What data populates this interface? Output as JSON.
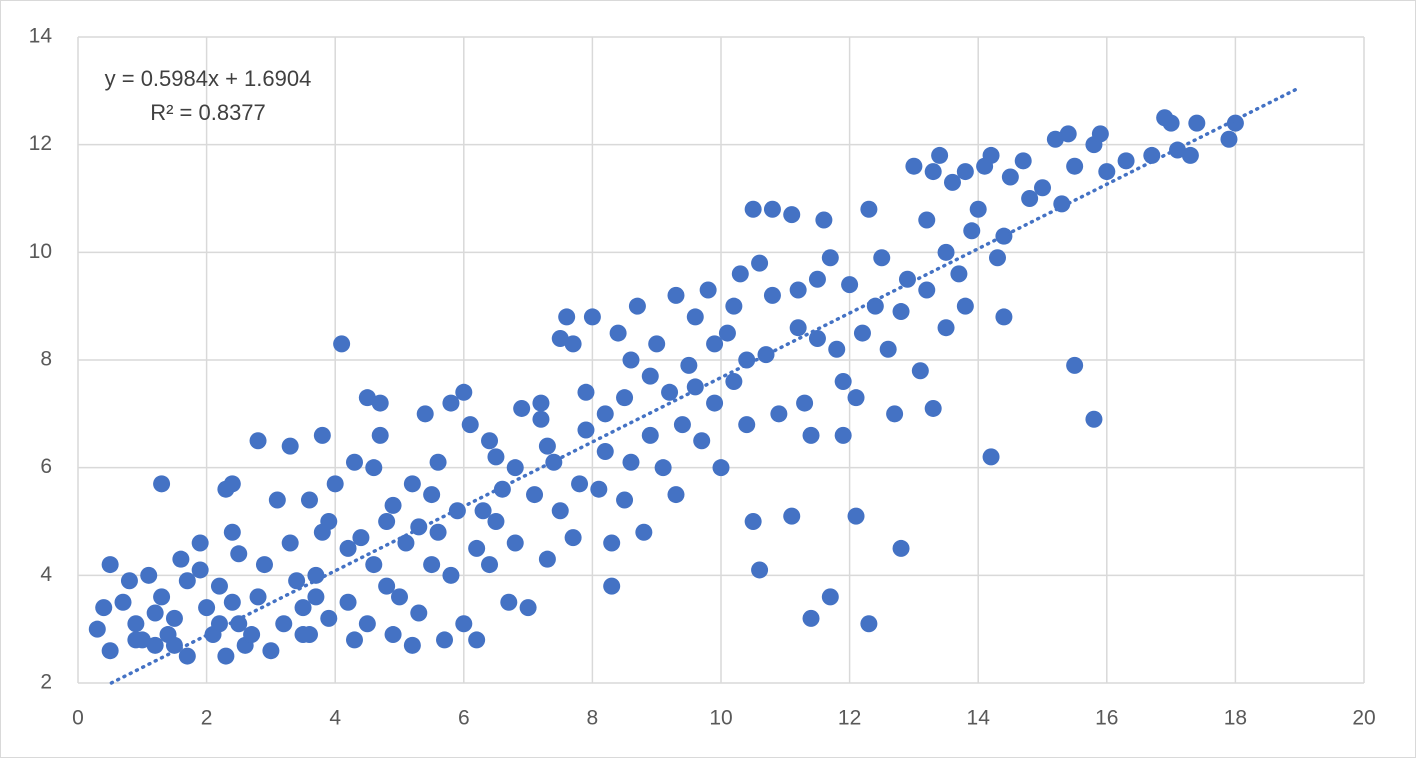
{
  "chart_data": {
    "type": "scatter",
    "color": "#4472c4",
    "grid": true,
    "annotations": [
      "y = 0.5984x + 1.6904",
      "R² = 0.8377"
    ],
    "trendline": {
      "slope": 0.5984,
      "intercept": 1.6904,
      "xlim": [
        0.52,
        19
      ]
    },
    "xlim": [
      0,
      20
    ],
    "xticks": [
      0,
      2,
      4,
      6,
      8,
      10,
      12,
      14,
      16,
      18,
      20
    ],
    "ylim": [
      2,
      14
    ],
    "yticks": [
      2,
      4,
      6,
      8,
      10,
      12,
      14
    ],
    "x": [
      0.3,
      0.4,
      0.5,
      0.5,
      0.7,
      0.8,
      0.9,
      1.0,
      1.1,
      1.2,
      1.3,
      1.3,
      1.4,
      1.5,
      1.6,
      1.7,
      1.7,
      1.9,
      1.9,
      1.2,
      0.9,
      1.5,
      2.0,
      2.1,
      2.2,
      2.3,
      2.4,
      2.3,
      2.4,
      2.5,
      2.6,
      2.5,
      2.8,
      2.8,
      2.9,
      2.2,
      2.7,
      2.4,
      3.0,
      3.1,
      3.2,
      3.3,
      3.3,
      3.5,
      3.6,
      3.7,
      3.8,
      3.9,
      3.8,
      3.5,
      3.7,
      3.9,
      3.4,
      3.6,
      4.1,
      4.0,
      4.2,
      4.3,
      4.4,
      4.5,
      4.6,
      4.7,
      4.7,
      4.8,
      4.9,
      4.3,
      4.5,
      4.6,
      4.9,
      4.2,
      4.8,
      5.0,
      5.1,
      5.2,
      5.3,
      5.4,
      5.5,
      5.6,
      5.7,
      5.8,
      5.9,
      6.0,
      6.0,
      5.3,
      5.5,
      5.8,
      5.2,
      5.6,
      6.1,
      6.2,
      6.3,
      6.4,
      6.5,
      6.6,
      6.8,
      6.9,
      6.7,
      6.2,
      6.5,
      6.8,
      6.4,
      7.0,
      7.1,
      7.2,
      7.3,
      7.4,
      7.5,
      7.6,
      7.7,
      7.8,
      7.9,
      7.3,
      7.5,
      7.7,
      7.2,
      7.9,
      8.0,
      8.1,
      8.2,
      8.3,
      8.3,
      8.4,
      8.5,
      8.6,
      8.7,
      8.8,
      8.9,
      8.2,
      8.5,
      8.9,
      8.6,
      9.0,
      9.1,
      9.2,
      9.3,
      9.4,
      9.5,
      9.6,
      9.7,
      9.8,
      9.9,
      9.3,
      9.6,
      9.9,
      10.0,
      10.1,
      10.2,
      10.3,
      10.4,
      10.5,
      10.5,
      10.6,
      10.7,
      10.8,
      10.9,
      10.2,
      10.6,
      10.4,
      10.8,
      11.1,
      11.1,
      11.2,
      11.3,
      11.4,
      11.5,
      11.6,
      11.7,
      11.8,
      11.9,
      11.4,
      11.7,
      11.2,
      11.9,
      11.5,
      12.1,
      12.1,
      12.3,
      12.3,
      12.4,
      12.6,
      12.7,
      12.8,
      12.9,
      13.0,
      12.2,
      12.5,
      12.8,
      12.0,
      13.1,
      13.2,
      13.3,
      13.4,
      13.5,
      13.6,
      13.7,
      13.8,
      13.9,
      13.2,
      13.5,
      13.8,
      13.3,
      14.0,
      14.1,
      14.2,
      14.3,
      14.4,
      14.5,
      14.7,
      14.8,
      14.2,
      14.4,
      15.0,
      15.2,
      15.3,
      15.4,
      15.5,
      15.5,
      15.8,
      15.8,
      15.9,
      16.0,
      16.3,
      16.7,
      16.9,
      17.0,
      17.1,
      17.3,
      17.4,
      17.9,
      18.0
    ],
    "values": [
      3.0,
      3.4,
      4.2,
      2.6,
      3.5,
      3.9,
      3.1,
      2.8,
      4.0,
      3.3,
      5.7,
      3.6,
      2.9,
      3.2,
      4.3,
      2.5,
      3.9,
      4.6,
      4.1,
      2.7,
      2.8,
      2.7,
      3.4,
      2.9,
      3.8,
      5.6,
      5.7,
      2.5,
      4.8,
      3.1,
      2.7,
      4.4,
      6.5,
      3.6,
      4.2,
      3.1,
      2.9,
      3.5,
      2.6,
      5.4,
      3.1,
      6.4,
      4.6,
      3.4,
      5.4,
      4.0,
      6.6,
      3.2,
      4.8,
      2.9,
      3.6,
      5.0,
      3.9,
      2.9,
      8.3,
      5.7,
      3.5,
      6.1,
      4.7,
      7.3,
      6.0,
      6.6,
      7.2,
      3.8,
      5.3,
      2.8,
      3.1,
      4.2,
      2.9,
      4.5,
      5.0,
      3.6,
      4.6,
      5.7,
      3.3,
      7.0,
      4.2,
      6.1,
      2.8,
      7.2,
      5.2,
      7.4,
      3.1,
      4.9,
      5.5,
      4.0,
      2.7,
      4.8,
      6.8,
      2.8,
      5.2,
      4.2,
      6.2,
      5.6,
      4.6,
      7.1,
      3.5,
      4.5,
      5.0,
      6.0,
      6.5,
      3.4,
      5.5,
      7.2,
      4.3,
      6.1,
      8.4,
      8.8,
      8.3,
      5.7,
      6.7,
      6.4,
      5.2,
      4.7,
      6.9,
      7.4,
      8.8,
      5.6,
      7.0,
      3.8,
      4.6,
      8.5,
      7.3,
      6.1,
      9.0,
      4.8,
      7.7,
      6.3,
      5.4,
      6.6,
      8.0,
      8.3,
      6.0,
      7.4,
      9.2,
      6.8,
      7.9,
      8.8,
      6.5,
      9.3,
      7.2,
      5.5,
      7.5,
      8.3,
      6.0,
      8.5,
      7.6,
      9.6,
      6.8,
      5.0,
      10.8,
      4.1,
      8.1,
      10.8,
      7.0,
      9.0,
      9.8,
      8.0,
      9.2,
      5.1,
      10.7,
      8.6,
      7.2,
      3.2,
      9.5,
      10.6,
      3.6,
      8.2,
      6.6,
      6.6,
      9.9,
      9.3,
      7.6,
      8.4,
      5.1,
      7.3,
      10.8,
      3.1,
      9.0,
      8.2,
      7.0,
      4.5,
      9.5,
      11.6,
      8.5,
      9.9,
      8.9,
      9.4,
      7.8,
      10.6,
      7.1,
      11.8,
      8.6,
      11.3,
      9.6,
      11.5,
      10.4,
      9.3,
      10.0,
      9.0,
      11.5,
      10.8,
      11.6,
      6.2,
      9.9,
      8.8,
      11.4,
      11.7,
      11.0,
      11.8,
      10.3,
      11.2,
      12.1,
      10.9,
      12.2,
      7.9,
      11.6,
      6.9,
      12.0,
      12.2,
      11.5,
      11.7,
      11.8,
      12.5,
      12.4,
      11.9,
      11.8,
      12.4,
      12.1,
      12.4
    ]
  }
}
